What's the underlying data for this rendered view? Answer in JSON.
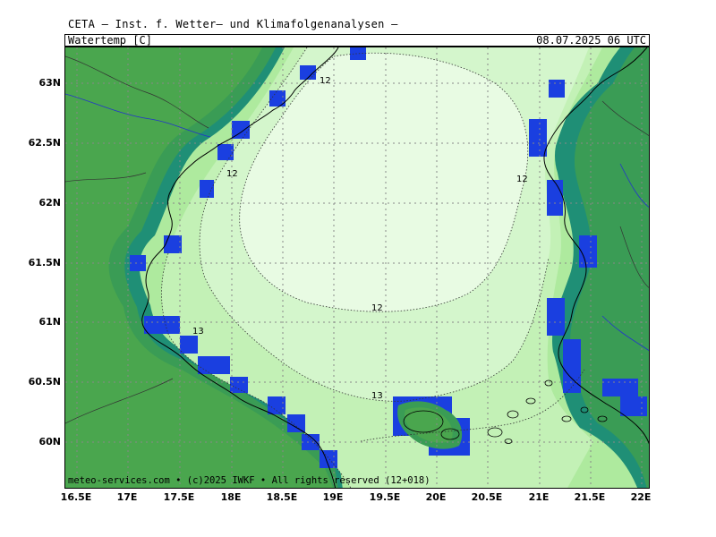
{
  "header": {
    "title": "CETA — Inst. f. Wetter— und Klimafolgenanalysen —",
    "parameter": "Watertemp [C]",
    "valid_time": "08.07.2025 06 UTC"
  },
  "footer": {
    "credit": "meteo-services.com • (c)2025 IWKF • All rights reserved (12+018)"
  },
  "axes": {
    "lat_labels": [
      "63N",
      "62.5N",
      "62N",
      "61.5N",
      "61N",
      "60.5N",
      "60N"
    ],
    "lon_labels": [
      "16.5E",
      "17E",
      "17.5E",
      "18E",
      "18.5E",
      "19E",
      "19.5E",
      "20E",
      "20.5E",
      "21E",
      "21.5E",
      "22E"
    ]
  },
  "contour_labels": [
    "12",
    "12",
    "12",
    "12",
    "13",
    "13"
  ],
  "colors": {
    "land": "#4aa64e",
    "coast_mid": "#2f9a58",
    "coast_teal": "#1c8a7a",
    "coast_blue": "#1a3fe0",
    "sea_12": "#e8fbe3",
    "sea_12_13": "#d4f6cc",
    "sea_13": "#c3f1b6",
    "sea_warm": "#aeea9e"
  }
}
